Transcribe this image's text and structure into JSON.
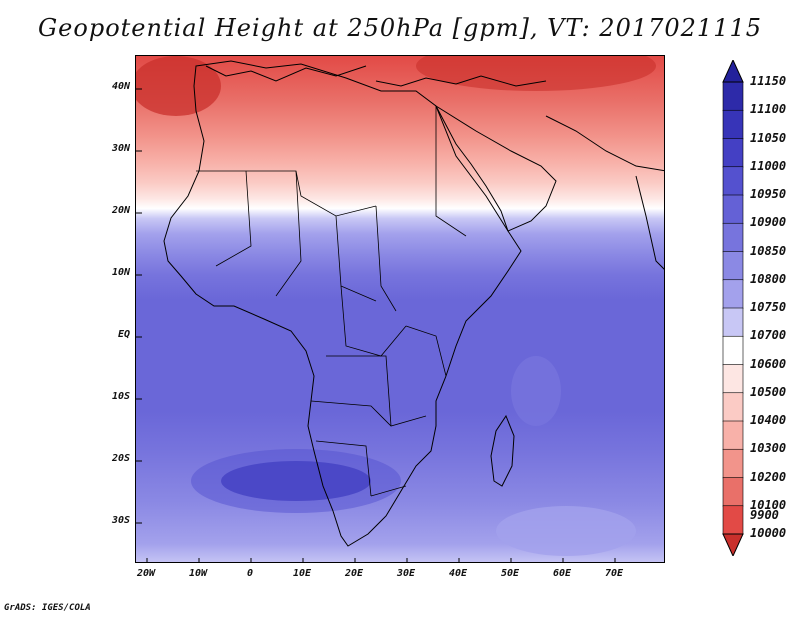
{
  "title": "Geopotential Height at 250hPa [gpm], VT: 2017021115",
  "footer": "GrADS: IGES/COLA",
  "map": {
    "lat_labels": [
      "40N",
      "30N",
      "20N",
      "10N",
      "EQ",
      "10S",
      "20S",
      "30S"
    ],
    "lon_labels": [
      "20W",
      "10W",
      "0",
      "10E",
      "20E",
      "30E",
      "40E",
      "50E",
      "60E",
      "70E"
    ],
    "lon_range": [
      -22,
      80
    ],
    "lat_range": [
      -37,
      45
    ]
  },
  "colorbar": {
    "labels": [
      "11150",
      "11100",
      "11050",
      "11000",
      "10950",
      "10900",
      "10850",
      "10800",
      "10750",
      "10700",
      "10600",
      "10500",
      "10400",
      "10300",
      "10200",
      "10100",
      "10000",
      "9900"
    ],
    "colors": [
      "#23219b",
      "#2d2aa9",
      "#3734b8",
      "#4440c4",
      "#5451cf",
      "#6461d6",
      "#7774dd",
      "#8b89e4",
      "#a3a1ec",
      "#c8c7f5",
      "#ffffff",
      "#fde6e3",
      "#fbcbc5",
      "#f8b1a9",
      "#f2948b",
      "#e97069",
      "#e24a46",
      "#c9302c"
    ]
  },
  "colors": {
    "frame": "#000000",
    "border": "#000000"
  }
}
